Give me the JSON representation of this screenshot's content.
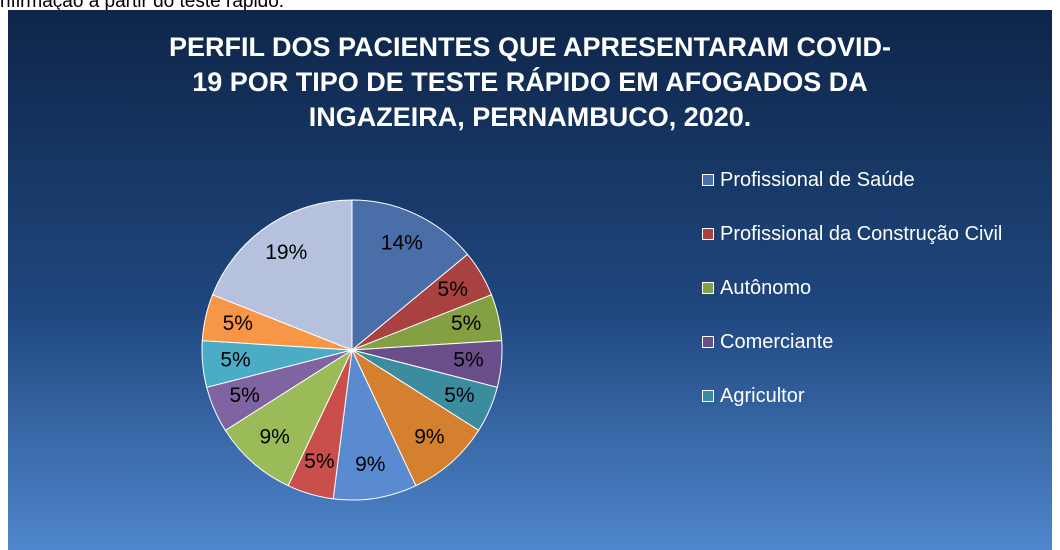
{
  "caption": "nfirmação a partir do teste rápido.",
  "chart_data": {
    "type": "pie",
    "title": "PERFIL DOS PACIENTES QUE APRESENTARAM COVID-19 POR TIPO DE TESTE RÁPIDO EM AFOGADOS DA INGAZEIRA, PERNAMBUCO, 2020.",
    "categories": [
      "Profissional de Saúde",
      "Profissional da Construção Civil",
      "Autônomo",
      "Comerciante",
      "Agricultor",
      null,
      null,
      null,
      null,
      null,
      null,
      null,
      null
    ],
    "values": [
      14,
      5,
      5,
      5,
      5,
      9,
      9,
      5,
      9,
      5,
      5,
      5,
      19
    ],
    "value_labels": [
      "14%",
      "5%",
      "5%",
      "5%",
      "5%",
      "9%",
      "9%",
      "5%",
      "9%",
      "5%",
      "5%",
      "5%",
      "19%"
    ],
    "colors": [
      "#4a6fa8",
      "#a8413f",
      "#84a043",
      "#6a4e8a",
      "#3a8c9e",
      "#d5802e",
      "#5a8ad0",
      "#c94f4c",
      "#9bbb59",
      "#8064a2",
      "#4bacc6",
      "#f79646",
      "#b6c2dd"
    ],
    "legend": "right"
  }
}
